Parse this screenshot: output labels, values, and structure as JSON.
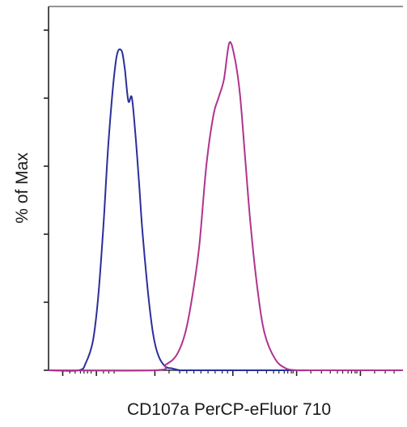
{
  "chart_data": {
    "type": "line",
    "title": "",
    "xlabel": "CD107a PerCP-eFluor 710",
    "ylabel": "% of Max",
    "xlim": [
      0,
      1
    ],
    "ylim": [
      0,
      100
    ],
    "grid": false,
    "legend": "none",
    "series": [
      {
        "color": "#2a2f9a",
        "x": [
          0.0,
          0.085,
          0.105,
          0.125,
          0.14,
          0.155,
          0.17,
          0.19,
          0.205,
          0.215,
          0.225,
          0.235,
          0.245,
          0.255,
          0.265,
          0.28,
          0.295,
          0.31,
          0.33,
          0.35,
          0.37,
          0.39,
          0.42,
          1.0
        ],
        "y": [
          0,
          0,
          2,
          8,
          20,
          40,
          64,
          85,
          88,
          83,
          74,
          75,
          65,
          52,
          38,
          22,
          10,
          4,
          1,
          0.5,
          0,
          0,
          0,
          0
        ]
      },
      {
        "color": "#b0338f",
        "x": [
          0.0,
          0.3,
          0.33,
          0.36,
          0.385,
          0.405,
          0.425,
          0.445,
          0.465,
          0.48,
          0.495,
          0.51,
          0.525,
          0.54,
          0.555,
          0.57,
          0.59,
          0.61,
          0.64,
          0.67,
          0.7,
          0.73,
          0.76,
          1.0
        ],
        "y": [
          0,
          0,
          1.5,
          4,
          10,
          20,
          34,
          56,
          70,
          75,
          80,
          90,
          86,
          76,
          58,
          40,
          22,
          10,
          3,
          0.5,
          0,
          0,
          0,
          0
        ]
      }
    ]
  }
}
